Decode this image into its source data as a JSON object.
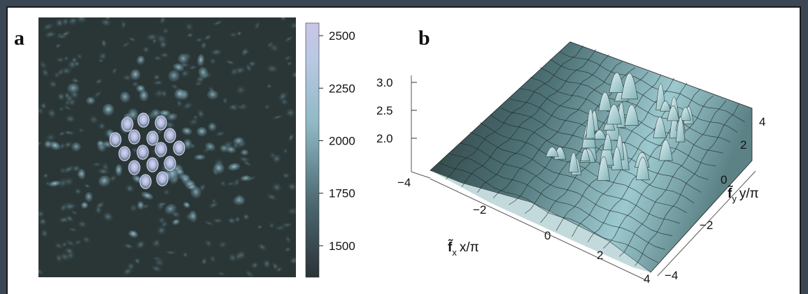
{
  "panels": {
    "a": {
      "label": "a",
      "colorbar": {
        "ticks": [
          "2500",
          "2250",
          "2000",
          "1750",
          "1500"
        ],
        "tick_values": [
          2500,
          2250,
          2000,
          1750,
          1500
        ],
        "range": [
          1350,
          2560
        ]
      }
    },
    "b": {
      "label": "b",
      "z_ticks": [
        "3.0",
        "2.5",
        "2.0"
      ],
      "x_ticks": [
        "−4",
        "−2",
        "0",
        "2",
        "4"
      ],
      "y_ticks": [
        "4",
        "2",
        "0",
        "−2",
        "−4"
      ],
      "x_label": {
        "symbol": "f̃",
        "sub": "x",
        "rest": "x/π"
      },
      "y_label": {
        "symbol": "f̃",
        "sub": "y",
        "rest": "y/π"
      }
    }
  },
  "chart_data": [
    {
      "type": "heatmap",
      "panel": "a",
      "colorbar_ticks": [
        1500,
        1750,
        2000,
        2250,
        2500
      ],
      "colorbar_range": [
        1350,
        2560
      ],
      "colors": [
        "#2a3338",
        "#4e6a72",
        "#8fb8c4",
        "#b8c8e4",
        "#c9c6e6"
      ]
    },
    {
      "type": "surface",
      "panel": "b",
      "xlabel": "f̃x x/π",
      "ylabel": "f̃y y/π",
      "x_ticks": [
        -4,
        -2,
        0,
        2,
        4
      ],
      "y_ticks": [
        -4,
        -2,
        0,
        2,
        4
      ],
      "z_ticks": [
        2.0,
        2.5,
        3.0
      ],
      "xlim": [
        -4,
        4
      ],
      "ylim": [
        -4,
        4
      ],
      "colors": [
        "#1f2a2a",
        "#7fb3b8",
        "#dfeef0"
      ]
    }
  ]
}
